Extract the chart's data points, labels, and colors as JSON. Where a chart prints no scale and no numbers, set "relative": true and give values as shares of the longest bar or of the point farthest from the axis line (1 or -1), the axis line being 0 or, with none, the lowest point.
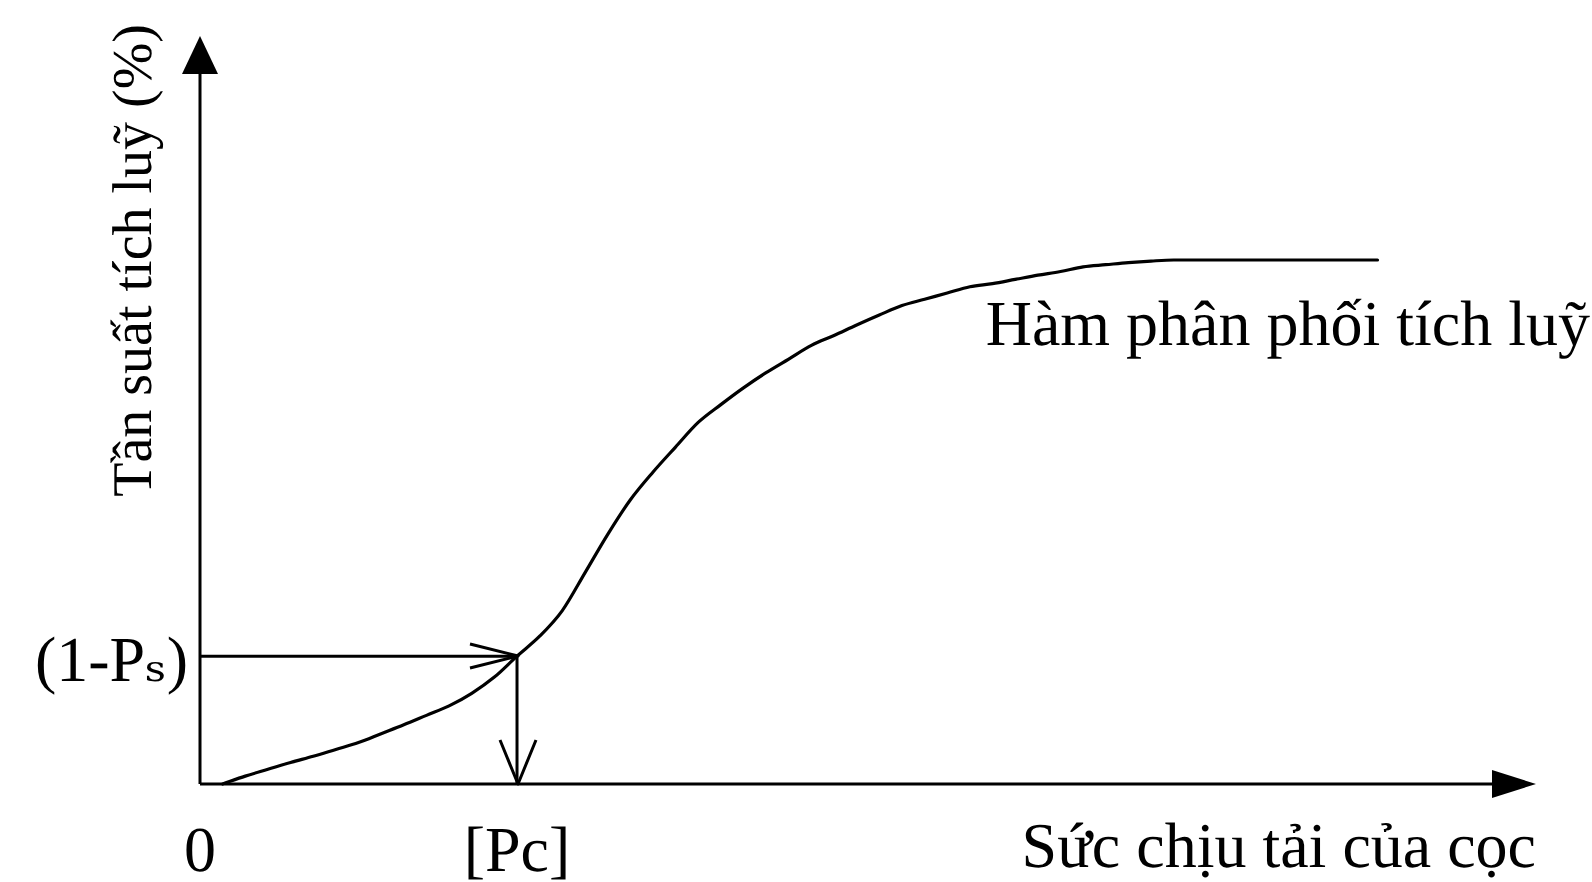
{
  "chart_data": {
    "type": "line",
    "xlabel": "Sức chịu tải của cọc",
    "ylabel": "Tần suất tích luỹ (%)",
    "relative": true,
    "tick_labels": "x",
    "marker": "none",
    "line_style": "solid",
    "categories": [
      "0",
      null,
      null,
      null,
      null,
      null,
      null,
      null,
      null,
      null,
      null,
      null,
      null,
      null,
      "[Pc]",
      null,
      null,
      null,
      null,
      null,
      null,
      null,
      null,
      null,
      null,
      null,
      null,
      null,
      null,
      null,
      null,
      null,
      null,
      null,
      null,
      null,
      null,
      null,
      null,
      null,
      null,
      null,
      null,
      null,
      null,
      null,
      null,
      null,
      null,
      null,
      null,
      null,
      null,
      null,
      null,
      null,
      null,
      null,
      null,
      null
    ],
    "series": [
      {
        "name": "Hàm phân phối tích luỹ",
        "color": "#000000",
        "values": [
          null,
          0,
          0.015,
          0.028,
          0.041,
          0.053,
          0.066,
          0.079,
          0.096,
          0.113,
          0.131,
          0.149,
          0.173,
          0.204,
          0.244,
          0.282,
          0.331,
          0.403,
          0.476,
          0.542,
          0.595,
          0.643,
          0.69,
          0.724,
          0.756,
          0.785,
          0.811,
          0.837,
          0.856,
          0.876,
          0.895,
          0.913,
          0.925,
          0.937,
          0.949,
          0.955,
          0.963,
          0.971,
          0.978,
          0.987,
          0.991,
          0.995,
          0.998,
          1,
          1,
          1,
          1,
          1,
          1,
          1,
          1,
          1,
          1,
          null,
          null,
          null,
          null,
          null,
          null,
          null
        ]
      }
    ],
    "ref_lines": [
      {
        "axis": "y",
        "value": 0.244,
        "label": "(1-Pₛ)"
      },
      {
        "axis": "x",
        "value": "[Pc]"
      }
    ]
  }
}
